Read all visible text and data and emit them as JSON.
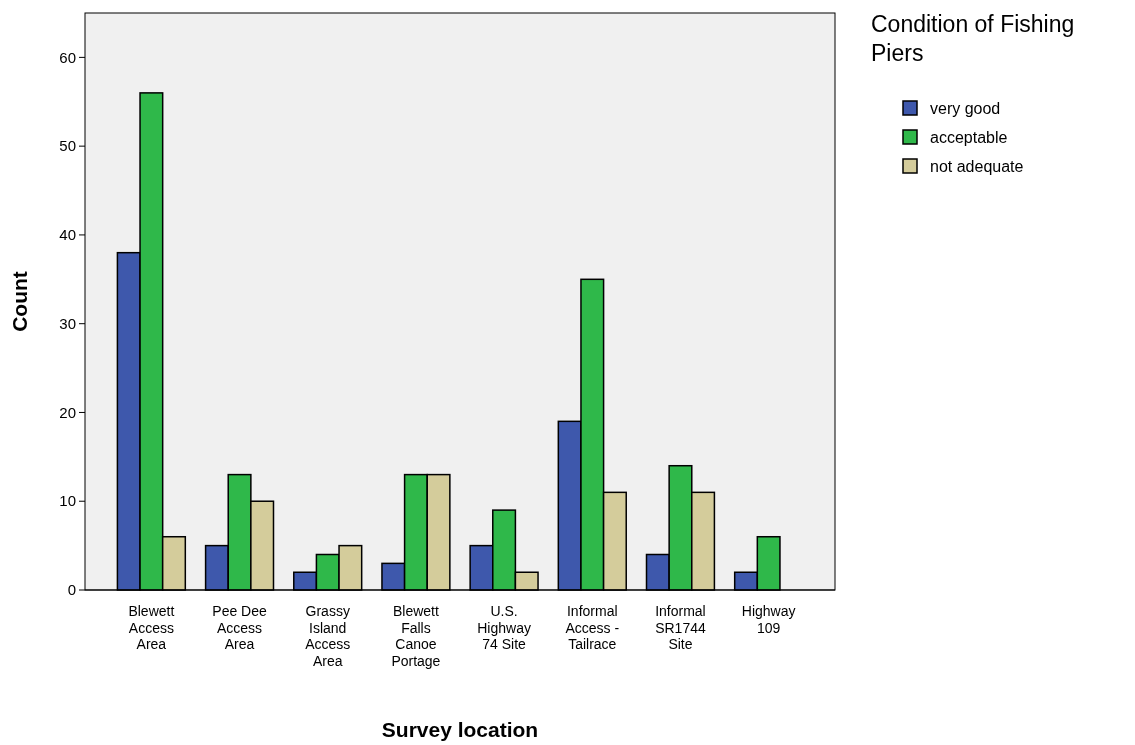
{
  "chart_data": {
    "type": "bar",
    "xlabel": "Survey location",
    "ylabel": "Count",
    "legend_title": "Condition of Fishing Piers",
    "categories": [
      "Blewett Access Area",
      "Pee Dee Access Area",
      "Grassy Island Access Area",
      "Blewett Falls Canoe Portage",
      "U.S. Highway 74 Site",
      "Informal Access - Tailrace",
      "Informal SR1744 Site",
      "Highway 109"
    ],
    "series": [
      {
        "name": "very good",
        "color": "#3e58ac",
        "values": [
          38,
          5,
          2,
          3,
          5,
          19,
          4,
          2
        ]
      },
      {
        "name": "acceptable",
        "color": "#2fb84a",
        "values": [
          56,
          13,
          4,
          13,
          9,
          35,
          14,
          6
        ]
      },
      {
        "name": "not adequate",
        "color": "#d4cc9b",
        "values": [
          6,
          10,
          5,
          13,
          2,
          11,
          11,
          0
        ]
      }
    ],
    "ylim": [
      0,
      65
    ],
    "yticks": [
      0,
      10,
      20,
      30,
      40,
      50,
      60
    ],
    "grid": false,
    "legend": "top right"
  }
}
